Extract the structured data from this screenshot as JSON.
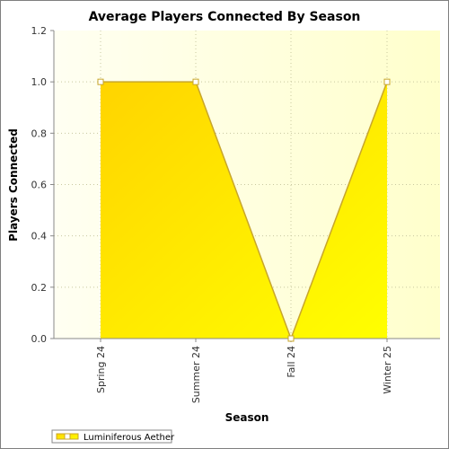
{
  "chart_data": {
    "type": "area",
    "title": "Average Players Connected By Season",
    "xlabel": "Season",
    "ylabel": "Players Connected",
    "categories": [
      "Spring 24",
      "Summer 24",
      "Fall 24",
      "Winter 25"
    ],
    "series": [
      {
        "name": "Luminiferous Aether",
        "values": [
          1.0,
          1.0,
          0.0,
          1.0
        ]
      }
    ],
    "ylim": [
      0.0,
      1.2
    ],
    "yticks": [
      0.0,
      0.2,
      0.4,
      0.6,
      0.8,
      1.0,
      1.2
    ],
    "ytick_labels": [
      "0.0",
      "0.2",
      "0.4",
      "0.6",
      "0.8",
      "1.0",
      "1.2"
    ],
    "grid": true,
    "legend_position": "bottom-left",
    "colors": {
      "area_fill_start": "#ffd400",
      "area_fill_end": "#ffff00",
      "line": "#c8a62a",
      "plot_background_start": "#fffff2",
      "plot_background_end": "#ffffcc",
      "grid": "#c8c8a0",
      "marker_fill": "#ffffff"
    }
  }
}
